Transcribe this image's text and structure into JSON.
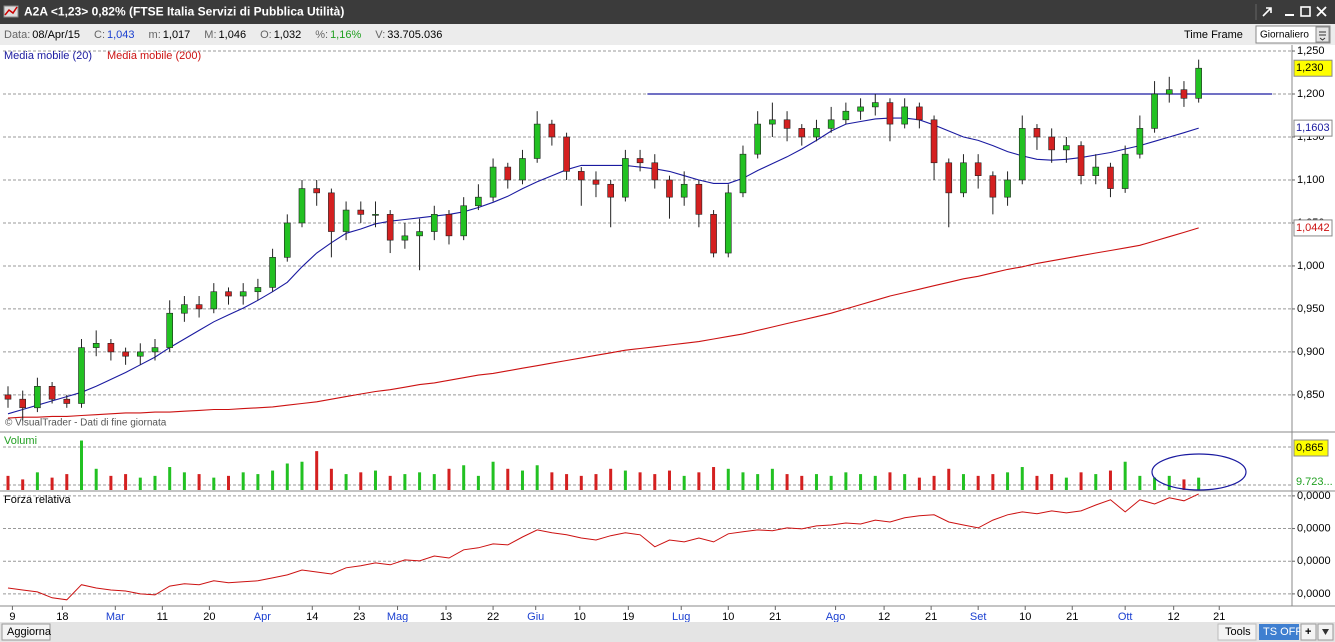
{
  "header": {
    "title": "A2A <1,23> 0,82% (FTSE Italia Servizi di Pubblica Utilità)",
    "info": [
      {
        "label": "Data:",
        "value": "08/Apr/15"
      },
      {
        "label": "C:",
        "value": "1,043"
      },
      {
        "label": "m:",
        "value": "1,017"
      },
      {
        "label": "M:",
        "value": "1,046"
      },
      {
        "label": "O:",
        "value": "1,032"
      },
      {
        "label": "%:",
        "value": "1,16%"
      },
      {
        "label": "V:",
        "value": "33.705.036"
      }
    ],
    "time_frame": "Time Frame",
    "time_frame_value": "Giornaliero"
  },
  "footer": {
    "refresh": "Aggiorna",
    "tools": "Tools",
    "ts": "TS OFF",
    "add": "+"
  },
  "chart_data": [
    {
      "type": "candlestick",
      "note": "© VisualTrader - Dati di fine giornata",
      "up_color": "#22c122",
      "down_color": "#d42020",
      "open": [
        0.85,
        0.845,
        0.835,
        0.86,
        0.845,
        0.84,
        0.905,
        0.91,
        0.9,
        0.895,
        0.9,
        0.905,
        0.945,
        0.955,
        0.95,
        0.97,
        0.965,
        0.97,
        0.975,
        1.01,
        1.05,
        1.09,
        1.085,
        1.04,
        1.065,
        1.06,
        1.06,
        1.03,
        1.035,
        1.04,
        1.06,
        1.035,
        1.07,
        1.08,
        1.115,
        1.1,
        1.125,
        1.165,
        1.15,
        1.11,
        1.1,
        1.095,
        1.08,
        1.125,
        1.12,
        1.1,
        1.08,
        1.095,
        1.06,
        1.015,
        1.085,
        1.13,
        1.165,
        1.17,
        1.16,
        1.15,
        1.16,
        1.17,
        1.18,
        1.185,
        1.19,
        1.165,
        1.185,
        1.17,
        1.12,
        1.085,
        1.12,
        1.105,
        1.08,
        1.1,
        1.16,
        1.15,
        1.135,
        1.14,
        1.105,
        1.115,
        1.09,
        1.13,
        1.16,
        1.2,
        1.205,
        1.195
      ],
      "high": [
        0.86,
        0.855,
        0.87,
        0.865,
        0.85,
        0.915,
        0.925,
        0.915,
        0.905,
        0.91,
        0.915,
        0.96,
        0.965,
        0.965,
        0.98,
        0.975,
        0.98,
        0.985,
        1.02,
        1.06,
        1.1,
        1.1,
        1.09,
        1.075,
        1.075,
        1.075,
        1.065,
        1.05,
        1.055,
        1.07,
        1.065,
        1.08,
        1.095,
        1.125,
        1.12,
        1.135,
        1.18,
        1.17,
        1.155,
        1.115,
        1.11,
        1.1,
        1.135,
        1.135,
        1.13,
        1.105,
        1.11,
        1.1,
        1.065,
        1.095,
        1.14,
        1.18,
        1.19,
        1.18,
        1.165,
        1.17,
        1.185,
        1.19,
        1.195,
        1.2,
        1.195,
        1.195,
        1.19,
        1.175,
        1.125,
        1.13,
        1.13,
        1.11,
        1.11,
        1.175,
        1.165,
        1.16,
        1.15,
        1.145,
        1.13,
        1.12,
        1.14,
        1.175,
        1.215,
        1.22,
        1.215,
        1.24
      ],
      "low": [
        0.835,
        0.82,
        0.83,
        0.84,
        0.835,
        0.835,
        0.895,
        0.89,
        0.885,
        0.885,
        0.89,
        0.9,
        0.935,
        0.94,
        0.945,
        0.955,
        0.955,
        0.96,
        0.97,
        1.005,
        1.045,
        1.07,
        1.01,
        1.03,
        1.05,
        1.045,
        1.015,
        1.02,
        0.995,
        1.03,
        1.025,
        1.03,
        1.065,
        1.075,
        1.09,
        1.095,
        1.12,
        1.14,
        1.1,
        1.07,
        1.08,
        1.045,
        1.075,
        1.11,
        1.09,
        1.055,
        1.07,
        1.045,
        1.01,
        1.01,
        1.08,
        1.125,
        1.15,
        1.145,
        1.14,
        1.145,
        1.155,
        1.165,
        1.17,
        1.175,
        1.145,
        1.16,
        1.16,
        1.1,
        1.045,
        1.08,
        1.09,
        1.06,
        1.07,
        1.095,
        1.135,
        1.12,
        1.12,
        1.095,
        1.095,
        1.08,
        1.085,
        1.125,
        1.155,
        1.19,
        1.185,
        1.19
      ],
      "close": [
        0.845,
        0.835,
        0.86,
        0.845,
        0.84,
        0.905,
        0.91,
        0.9,
        0.895,
        0.9,
        0.905,
        0.945,
        0.955,
        0.95,
        0.97,
        0.965,
        0.97,
        0.975,
        1.01,
        1.05,
        1.09,
        1.085,
        1.04,
        1.065,
        1.06,
        1.06,
        1.03,
        1.035,
        1.04,
        1.06,
        1.035,
        1.07,
        1.08,
        1.115,
        1.1,
        1.125,
        1.165,
        1.15,
        1.11,
        1.1,
        1.095,
        1.08,
        1.125,
        1.12,
        1.1,
        1.08,
        1.095,
        1.06,
        1.015,
        1.085,
        1.13,
        1.165,
        1.17,
        1.16,
        1.15,
        1.16,
        1.17,
        1.18,
        1.185,
        1.19,
        1.165,
        1.185,
        1.17,
        1.12,
        1.085,
        1.12,
        1.105,
        1.08,
        1.1,
        1.16,
        1.15,
        1.135,
        1.14,
        1.105,
        1.115,
        1.09,
        1.13,
        1.16,
        1.2,
        1.205,
        1.195,
        1.23
      ],
      "lines": [
        {
          "name": "Media mobile (20)",
          "color": "#1a1aa0",
          "values": [
            0.828,
            0.833,
            0.838,
            0.843,
            0.848,
            0.853,
            0.86,
            0.868,
            0.876,
            0.885,
            0.894,
            0.905,
            0.915,
            0.925,
            0.935,
            0.943,
            0.951,
            0.96,
            0.97,
            0.981,
            0.999,
            1.015,
            1.027,
            1.038,
            1.043,
            1.049,
            1.052,
            1.054,
            1.056,
            1.058,
            1.06,
            1.063,
            1.068,
            1.074,
            1.081,
            1.09,
            1.098,
            1.105,
            1.112,
            1.117,
            1.117,
            1.117,
            1.117,
            1.115,
            1.113,
            1.11,
            1.105,
            1.1,
            1.096,
            1.096,
            1.102,
            1.111,
            1.119,
            1.127,
            1.136,
            1.146,
            1.157,
            1.165,
            1.168,
            1.171,
            1.172,
            1.172,
            1.17,
            1.164,
            1.157,
            1.15,
            1.146,
            1.14,
            1.133,
            1.128,
            1.124,
            1.123,
            1.124,
            1.126,
            1.129,
            1.132,
            1.136,
            1.14,
            1.145,
            1.15,
            1.155,
            1.1603
          ]
        },
        {
          "name": "Media mobile (200)",
          "color": "#cc1111",
          "values": [
            0.823,
            0.824,
            0.824,
            0.825,
            0.825,
            0.826,
            0.827,
            0.828,
            0.829,
            0.829,
            0.83,
            0.83,
            0.831,
            0.832,
            0.833,
            0.833,
            0.834,
            0.835,
            0.836,
            0.838,
            0.84,
            0.842,
            0.845,
            0.848,
            0.851,
            0.854,
            0.856,
            0.859,
            0.862,
            0.864,
            0.867,
            0.87,
            0.873,
            0.875,
            0.878,
            0.881,
            0.884,
            0.887,
            0.89,
            0.893,
            0.896,
            0.899,
            0.902,
            0.904,
            0.906,
            0.908,
            0.91,
            0.912,
            0.915,
            0.918,
            0.921,
            0.925,
            0.929,
            0.933,
            0.937,
            0.941,
            0.945,
            0.95,
            0.955,
            0.96,
            0.965,
            0.969,
            0.973,
            0.977,
            0.981,
            0.985,
            0.988,
            0.992,
            0.996,
            0.999,
            1.003,
            1.006,
            1.009,
            1.012,
            1.015,
            1.018,
            1.021,
            1.024,
            1.029,
            1.034,
            1.039,
            1.0442
          ]
        }
      ],
      "hline": {
        "value": 1.2,
        "x": [
          43.5,
          86
        ],
        "color": "#1a1aa0"
      },
      "markers": [
        {
          "value": 1.23,
          "label": "1,230",
          "color": "#000000",
          "background": "#ffff00"
        },
        {
          "value": 1.1603,
          "label": "1,1603",
          "color": "#1a1aa0",
          "background": "#ffffff"
        },
        {
          "value": 1.0442,
          "label": "1,0442",
          "color": "#cc1111",
          "background": "#ffffff"
        }
      ],
      "xlim": [
        -0.34,
        87.35
      ],
      "ylim": [
        0.808,
        1.257
      ],
      "yticks": [
        {
          "value": 1.25,
          "label": "1,250"
        },
        {
          "value": 1.2,
          "label": "1,200"
        },
        {
          "value": 1.15,
          "label": "1,150"
        },
        {
          "value": 1.1,
          "label": "1,100"
        },
        {
          "value": 1.05,
          "label": "1,050"
        },
        {
          "value": 1,
          "label": "1,000"
        },
        {
          "value": 0.95,
          "label": "0,950"
        },
        {
          "value": 0.9,
          "label": "0,900"
        },
        {
          "value": 0.85,
          "label": "0,850"
        }
      ],
      "grid": true
    },
    {
      "type": "bar",
      "title": "Volumi",
      "title_color": "#22a022",
      "values": [
        8,
        6,
        10,
        7,
        9,
        28,
        12,
        8,
        9,
        7,
        8,
        13,
        10,
        9,
        7,
        8,
        10,
        9,
        11,
        15,
        16,
        22,
        12,
        9,
        10,
        11,
        8,
        9,
        10,
        9,
        12,
        14,
        8,
        16,
        12,
        11,
        14,
        10,
        9,
        8,
        9,
        12,
        11,
        10,
        9,
        11,
        8,
        10,
        13,
        12,
        10,
        9,
        12,
        9,
        8,
        9,
        8,
        10,
        9,
        8,
        10,
        9,
        7,
        8,
        12,
        9,
        8,
        9,
        10,
        13,
        8,
        9,
        7,
        10,
        9,
        11,
        16,
        8,
        7,
        8,
        6,
        7
      ],
      "side_labels": [
        "0,865",
        "9.723..."
      ],
      "xlim": [
        -0.34,
        87.35
      ],
      "ylim": [
        0,
        30
      ]
    },
    {
      "type": "line",
      "title": "Forza relativa",
      "color": "#cc1111",
      "values": [
        1.8e-06,
        1.2e-06,
        6e-07,
        -1.2e-06,
        -1.8e-06,
        2.8e-06,
        1.8e-06,
        1.2e-06,
        9e-07,
        0,
        -3e-07,
        2.4e-06,
        3.1e-06,
        2.8e-06,
        4e-06,
        3.4e-06,
        3.7e-06,
        4e-06,
        4.9e-06,
        5.8e-06,
        7.3e-06,
        6.7e-06,
        6.1e-06,
        8e-06,
        8.6e-06,
        9.5e-06,
        8.9e-06,
        1.04e-05,
        1.01e-05,
        1.16e-05,
        1.1e-05,
        1.35e-05,
        1.41e-05,
        1.53e-05,
        1.5e-05,
        1.74e-05,
        1.96e-05,
        1.87e-05,
        1.81e-05,
        1.71e-05,
        1.65e-05,
        1.78e-05,
        1.87e-05,
        1.81e-05,
        1.44e-05,
        1.65e-05,
        1.59e-05,
        1.71e-05,
        1.59e-05,
        1.84e-05,
        1.9e-05,
        1.96e-05,
        1.93e-05,
        2.02e-05,
        1.99e-05,
        2.08e-05,
        2.11e-05,
        2.17e-05,
        2.14e-05,
        2.26e-05,
        2.2e-05,
        2.33e-05,
        2.39e-05,
        2.42e-05,
        2.2e-05,
        2.11e-05,
        2.02e-05,
        2.26e-05,
        2.42e-05,
        2.51e-05,
        2.45e-05,
        2.54e-05,
        2.48e-05,
        2.54e-05,
        2.72e-05,
        2.88e-05,
        2.51e-05,
        2.88e-05,
        2.75e-05,
        2.94e-05,
        2.85e-05,
        3.06e-05
      ],
      "xlim": [
        -0.34,
        87.35
      ],
      "ylim": [
        -3.4e-06,
        3.18e-05
      ],
      "yticks": [
        {
          "value": 3e-05,
          "label": "0,0000"
        },
        {
          "value": 2e-05,
          "label": "0,0000"
        },
        {
          "value": 1e-05,
          "label": "0,0000"
        },
        {
          "value": 0,
          "label": "0,0000"
        }
      ],
      "xticks": [
        {
          "value": 0.3,
          "label": "9"
        },
        {
          "value": 3.7,
          "label": "18"
        },
        {
          "value": 7.3,
          "label": "Mar",
          "color": "#1a3fd0"
        },
        {
          "value": 10.5,
          "label": "11"
        },
        {
          "value": 13.7,
          "label": "20"
        },
        {
          "value": 17.3,
          "label": "Apr",
          "color": "#1a3fd0"
        },
        {
          "value": 20.7,
          "label": "14"
        },
        {
          "value": 23.9,
          "label": "23"
        },
        {
          "value": 26.5,
          "label": "Mag",
          "color": "#1a3fd0"
        },
        {
          "value": 29.8,
          "label": "13"
        },
        {
          "value": 33.0,
          "label": "22"
        },
        {
          "value": 35.9,
          "label": "Giu",
          "color": "#1a3fd0"
        },
        {
          "value": 38.9,
          "label": "10"
        },
        {
          "value": 42.2,
          "label": "19"
        },
        {
          "value": 45.8,
          "label": "Lug",
          "color": "#1a3fd0"
        },
        {
          "value": 49.0,
          "label": "10"
        },
        {
          "value": 52.2,
          "label": "21"
        },
        {
          "value": 56.3,
          "label": "Ago",
          "color": "#1a3fd0"
        },
        {
          "value": 59.6,
          "label": "12"
        },
        {
          "value": 62.8,
          "label": "21"
        },
        {
          "value": 66.0,
          "label": "Set",
          "color": "#1a3fd0"
        },
        {
          "value": 69.2,
          "label": "10"
        },
        {
          "value": 72.4,
          "label": "21"
        },
        {
          "value": 76.0,
          "label": "Ott",
          "color": "#1a3fd0"
        },
        {
          "value": 79.3,
          "label": "12"
        },
        {
          "value": 82.4,
          "label": "21"
        }
      ],
      "grid": true
    }
  ]
}
